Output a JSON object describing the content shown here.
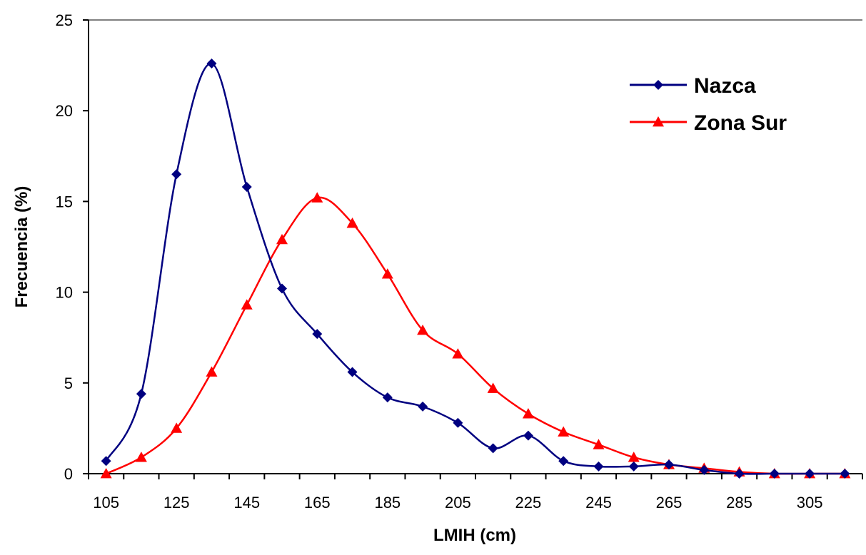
{
  "chart_data": {
    "type": "line",
    "title": "",
    "xlabel": "LMIH (cm)",
    "ylabel": "Frecuencia (%)",
    "xlim": [
      100,
      320
    ],
    "ylim": [
      0,
      25
    ],
    "xticks": [
      105,
      125,
      145,
      165,
      185,
      205,
      225,
      245,
      265,
      285,
      305
    ],
    "yticks": [
      0,
      5,
      10,
      15,
      20,
      25
    ],
    "grid": false,
    "legend_position": "top-right",
    "x": [
      105,
      115,
      125,
      135,
      145,
      155,
      165,
      175,
      185,
      195,
      205,
      215,
      225,
      235,
      245,
      255,
      265,
      275,
      285,
      295,
      305,
      315
    ],
    "series": [
      {
        "name": "Nazca",
        "color": "#000080",
        "marker": "diamond",
        "values": [
          0.7,
          4.4,
          16.5,
          22.6,
          15.8,
          10.2,
          7.7,
          5.6,
          4.2,
          3.7,
          2.8,
          1.4,
          2.1,
          0.7,
          0.4,
          0.4,
          0.5,
          0.2,
          0.0,
          0.0,
          0.0,
          0.0
        ]
      },
      {
        "name": "Zona Sur",
        "color": "#ff0000",
        "marker": "triangle",
        "values": [
          0.0,
          0.9,
          2.5,
          5.6,
          9.3,
          12.9,
          15.2,
          13.8,
          11.0,
          7.9,
          6.6,
          4.7,
          3.3,
          2.3,
          1.6,
          0.9,
          0.5,
          0.3,
          0.1,
          0.0,
          0.0,
          0.0
        ]
      }
    ]
  }
}
